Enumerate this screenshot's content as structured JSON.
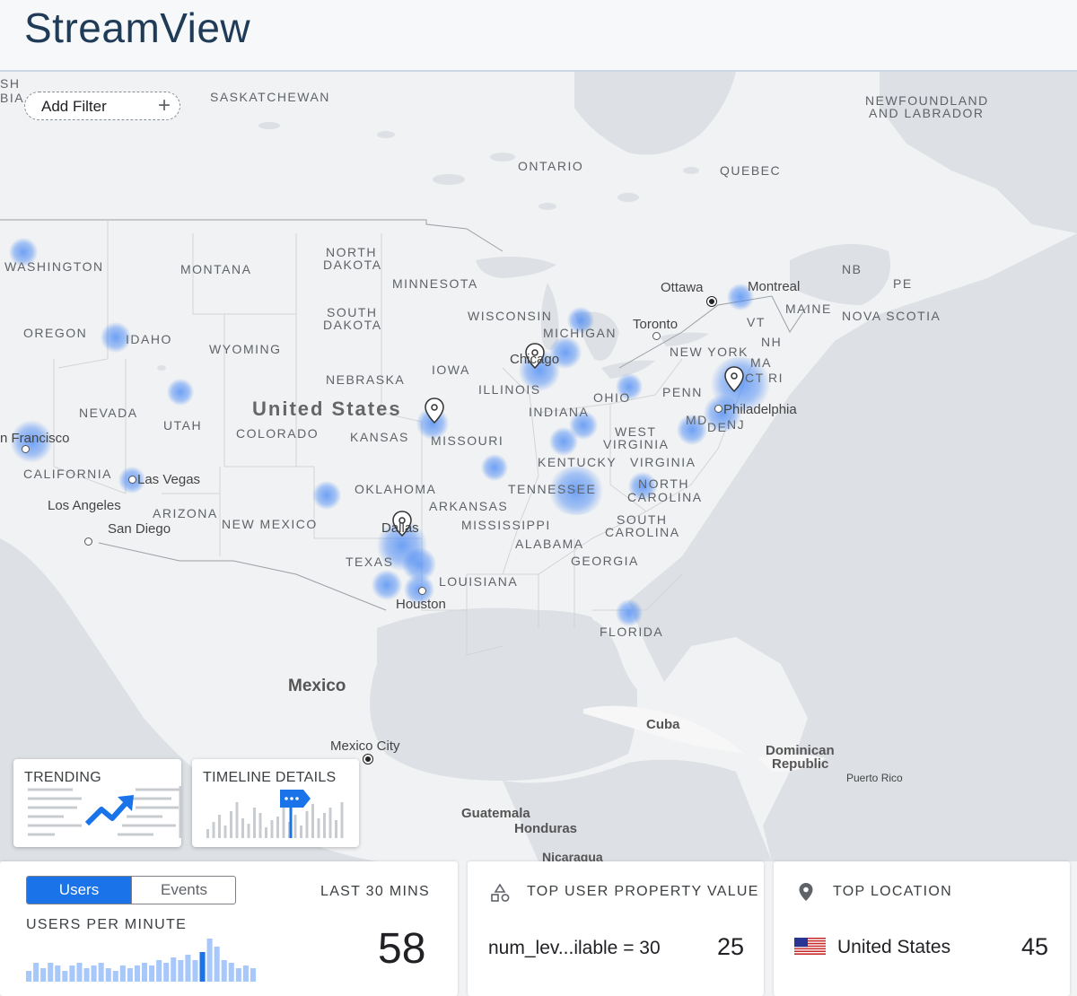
{
  "header": {
    "title": "StreamView"
  },
  "filter": {
    "label": "Add Filter"
  },
  "map_labels": {
    "sh": "SH",
    "bia": "BIA",
    "saskatchewan": "SASKATCHEWAN",
    "newfoundland_1": "NEWFOUNDLAND",
    "newfoundland_2": "AND LABRADOR",
    "ontario": "ONTARIO",
    "quebec": "QUEBEC",
    "washington": "WASHINGTON",
    "montana": "MONTANA",
    "north_dakota_1": "NORTH",
    "north_dakota_2": "DAKOTA",
    "minnesota": "MINNESOTA",
    "south_dakota_1": "SOUTH",
    "south_dakota_2": "DAKOTA",
    "wisconsin": "WISCONSIN",
    "michigan": "MICHIGAN",
    "oregon": "OREGON",
    "idaho": "IDAHO",
    "wyoming": "WYOMING",
    "iowa": "IOWA",
    "nebraska": "NEBRASKA",
    "illinois": "ILLINOIS",
    "ohio": "OHIO",
    "penn": "PENN",
    "nevada": "NEVADA",
    "utah": "UTAH",
    "united_states": "United States",
    "colorado": "COLORADO",
    "kansas": "KANSAS",
    "missouri": "MISSOURI",
    "indiana": "INDIANA",
    "west_virginia_1": "WEST",
    "west_virginia_2": "VIRGINIA",
    "kentucky": "KENTUCKY",
    "virginia": "VIRGINIA",
    "california": "CALIFORNIA",
    "oklahoma": "OKLAHOMA",
    "tennessee": "TENNESSEE",
    "north_carolina_1": "NORTH",
    "north_carolina_2": "CAROLINA",
    "arizona": "ARIZONA",
    "new_mexico": "NEW MEXICO",
    "arkansas": "ARKANSAS",
    "mississippi": "MISSISSIPPI",
    "south_carolina_1": "SOUTH",
    "south_carolina_2": "CAROLINA",
    "alabama": "ALABAMA",
    "georgia": "GEORGIA",
    "texas": "TEXAS",
    "louisiana": "LOUISIANA",
    "florida": "FLORIDA",
    "mexico": "Mexico",
    "cuba": "Cuba",
    "dominican_1": "Dominican",
    "dominican_2": "Republic",
    "puerto_rico": "Puerto Rico",
    "guatemala": "Guatemala",
    "honduras": "Honduras",
    "nicaragua": "Nicaragua",
    "nb": "NB",
    "pe": "PE",
    "maine": "MAINE",
    "nova_scotia": "NOVA SCOTIA",
    "vt": "VT",
    "nh": "NH",
    "ma": "MA",
    "ct": "CT",
    "ri": "RI",
    "new_york": "NEW YORK",
    "md": "MD",
    "de": "DE",
    "nj": "NJ",
    "ottawa": "Ottawa",
    "montreal": "Montreal",
    "toronto": "Toronto",
    "chicago": "Chicago",
    "philadelphia": "Philadelphia",
    "san_francisco": "n Francisco",
    "las_vegas": "Las Vegas",
    "los_angeles": "Los Angeles",
    "san_diego": "San Diego",
    "dallas": "Dallas",
    "houston": "Houston",
    "mexico_city": "Mexico City"
  },
  "mini_cards": {
    "trending": "TRENDING",
    "timeline": "TIMELINE DETAILS"
  },
  "toggle": {
    "users": "Users",
    "events": "Events"
  },
  "users_panel": {
    "range_label": "LAST 30 MINS",
    "chart_title": "USERS PER MINUTE",
    "count": "58"
  },
  "property_panel": {
    "title": "TOP USER PROPERTY VALUE",
    "value": "num_lev...ilable = 30",
    "count": "25"
  },
  "location_panel": {
    "title": "TOP LOCATION",
    "value": "United States",
    "count": "45"
  },
  "chart_data": {
    "type": "bar",
    "values": [
      4,
      7,
      5,
      7,
      6,
      4,
      6,
      7,
      5,
      6,
      7,
      5,
      4,
      6,
      5,
      6,
      7,
      6,
      8,
      7,
      9,
      8,
      10,
      8,
      11,
      16,
      13,
      8,
      7,
      5,
      6,
      5
    ],
    "highlight_index": 24,
    "colors": {
      "bar": "#a8c7fa",
      "highlight": "#1a73e8"
    }
  }
}
